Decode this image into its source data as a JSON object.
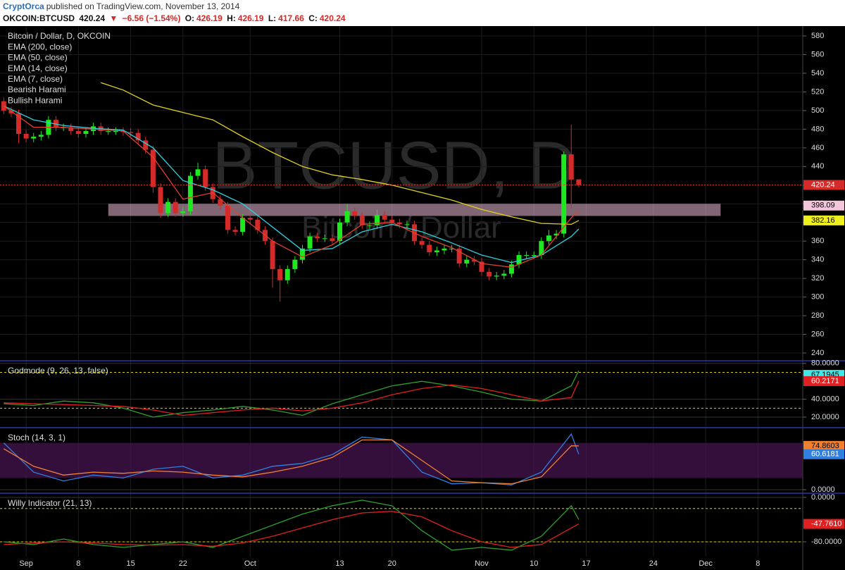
{
  "header": {
    "user": "CryptOrca",
    "published": "published on TradingView.com, November 13, 2014"
  },
  "quote": {
    "symbol": "OKCOIN:BTCUSD",
    "last": "420.24",
    "change": "−6.56 (−1.54%)",
    "ohlc": [
      {
        "label": "O:",
        "value": "426.19"
      },
      {
        "label": "H:",
        "value": "426.19"
      },
      {
        "label": "L:",
        "value": "417.66"
      },
      {
        "label": "C:",
        "value": "420.24"
      }
    ]
  },
  "watermark": {
    "symbol": "BTCUSD, D",
    "description": "Bitcoin / Dollar"
  },
  "chart_data": [
    {
      "type": "candlestick",
      "legend": [
        "Bitcoin / Dollar, D, OKCOIN",
        "EMA (200, close)",
        "EMA (50, close)",
        "EMA (14, close)",
        "EMA (7, close)",
        "Bearish Harami",
        "Bullish Harami"
      ],
      "open": [
        510,
        500,
        497,
        475,
        470,
        472,
        474,
        490,
        482,
        482,
        478,
        475,
        478,
        483,
        478,
        478,
        478,
        477,
        476,
        468,
        458,
        418,
        390,
        402,
        390,
        392,
        430,
        437,
        418,
        405,
        398,
        372,
        370,
        385,
        383,
        372,
        360,
        330,
        318,
        330,
        340,
        352,
        365,
        363,
        363,
        360,
        380,
        392,
        387,
        377,
        377,
        388,
        383,
        380,
        378,
        378,
        360,
        356,
        348,
        350,
        352,
        352,
        336,
        340,
        338,
        327,
        322,
        323,
        325,
        335,
        345,
        345,
        345,
        360,
        366,
        368,
        453,
        426.19
      ],
      "high": [
        514,
        504,
        501,
        479,
        476,
        478,
        494,
        494,
        486,
        486,
        482,
        482,
        487,
        487,
        482,
        482,
        482,
        481,
        480,
        472,
        462,
        422,
        406,
        406,
        396,
        434,
        444,
        441,
        422,
        409,
        402,
        376,
        389,
        389,
        387,
        376,
        364,
        334,
        334,
        344,
        356,
        369,
        369,
        367,
        367,
        384,
        400,
        396,
        391,
        381,
        394,
        392,
        387,
        384,
        382,
        382,
        364,
        360,
        354,
        356,
        356,
        356,
        344,
        344,
        342,
        331,
        327,
        329,
        339,
        349,
        349,
        349,
        364,
        372,
        372,
        456,
        485,
        426.19
      ],
      "low": [
        496,
        493,
        465,
        466,
        466,
        468,
        470,
        478,
        478,
        474,
        471,
        471,
        474,
        474,
        474,
        474,
        473,
        472,
        464,
        454,
        412,
        385,
        386,
        386,
        386,
        388,
        426,
        414,
        401,
        394,
        368,
        366,
        366,
        379,
        368,
        356,
        310,
        295,
        314,
        326,
        336,
        348,
        359,
        359,
        356,
        356,
        376,
        383,
        373,
        373,
        373,
        379,
        376,
        374,
        374,
        356,
        352,
        344,
        344,
        346,
        348,
        332,
        332,
        334,
        323,
        318,
        318,
        319,
        321,
        331,
        341,
        341,
        341,
        356,
        362,
        364,
        395,
        417.66
      ],
      "close": [
        500,
        497,
        475,
        470,
        472,
        474,
        490,
        482,
        482,
        478,
        475,
        478,
        483,
        478,
        478,
        478,
        477,
        476,
        468,
        458,
        418,
        390,
        402,
        390,
        392,
        430,
        437,
        418,
        405,
        398,
        372,
        370,
        385,
        383,
        372,
        360,
        330,
        318,
        330,
        340,
        352,
        365,
        363,
        363,
        360,
        380,
        392,
        387,
        377,
        377,
        388,
        383,
        380,
        378,
        378,
        360,
        356,
        348,
        350,
        352,
        352,
        336,
        340,
        338,
        327,
        322,
        323,
        325,
        335,
        345,
        345,
        345,
        360,
        366,
        368,
        453,
        426,
        420.24
      ],
      "up_color": "#1ee81e",
      "down_color": "#d42a2a",
      "series": [
        {
          "color": "#e0d020",
          "x": [
            13,
            16,
            20,
            24,
            28,
            32,
            36,
            40,
            44,
            48,
            52,
            56,
            60,
            64,
            68,
            72,
            76,
            77
          ],
          "values": [
            530,
            522,
            506,
            498,
            490,
            472,
            455,
            440,
            431,
            426,
            420,
            412,
            404,
            394,
            386,
            379,
            378,
            382.16
          ]
        },
        {
          "color": "#30d0e0",
          "x": [
            0,
            4,
            8,
            12,
            16,
            20,
            24,
            28,
            32,
            36,
            40,
            44,
            48,
            52,
            56,
            60,
            64,
            68,
            72,
            76,
            77
          ],
          "values": [
            505,
            490,
            484,
            481,
            479,
            460,
            425,
            415,
            400,
            375,
            350,
            352,
            370,
            378,
            370,
            358,
            345,
            337,
            345,
            365,
            373
          ]
        },
        {
          "color": "#e04030",
          "x": [
            0,
            4,
            8,
            12,
            16,
            20,
            24,
            28,
            32,
            36,
            40,
            44,
            48,
            52,
            56,
            60,
            64,
            68,
            72,
            76,
            77
          ],
          "values": [
            505,
            482,
            482,
            480,
            478,
            450,
            405,
            412,
            385,
            360,
            343,
            356,
            378,
            380,
            365,
            353,
            336,
            332,
            345,
            385,
            393
          ]
        }
      ],
      "zone": {
        "x": [
          14,
          96
        ],
        "y": [
          387,
          400
        ],
        "color": "rgba(235,185,215,0.55)"
      },
      "price_labels": [
        {
          "value": 420.24,
          "color": "#d42a2a"
        },
        {
          "value": 398.09,
          "color": "#f3c6dc"
        },
        {
          "value": 382.16,
          "color": "#f0f020"
        }
      ],
      "xlim": [
        -0.5,
        107
      ],
      "ylim": [
        231.7,
        590.6
      ],
      "yticks": [
        240,
        260,
        280,
        300,
        320,
        340,
        360,
        380,
        400,
        420,
        440,
        460,
        480,
        500,
        520,
        540,
        560,
        580
      ],
      "xticks": [
        {
          "value": 3,
          "label": "Sep"
        },
        {
          "value": 10,
          "label": "8"
        },
        {
          "value": 17,
          "label": "15"
        },
        {
          "value": 24,
          "label": "22"
        },
        {
          "value": 33,
          "label": "Oct"
        },
        {
          "value": 45,
          "label": "13"
        },
        {
          "value": 52,
          "label": "20"
        },
        {
          "value": 64,
          "label": "Nov"
        },
        {
          "value": 71,
          "label": "10"
        },
        {
          "value": 78,
          "label": "17"
        },
        {
          "value": 87,
          "label": "24"
        },
        {
          "value": 94,
          "label": "Dec"
        },
        {
          "value": 101,
          "label": "8"
        }
      ],
      "grid": true
    },
    {
      "type": "line",
      "title": "Godmode (9, 26, 13, false)",
      "ylim": [
        8.2,
        83
      ],
      "yticks": [
        {
          "value": 20,
          "label": "20.0000"
        },
        {
          "value": 40,
          "label": "40.0000"
        },
        {
          "value": 80,
          "label": "80.0000"
        }
      ],
      "levels": [
        70,
        30
      ],
      "series": [
        {
          "color": "#2ea02e",
          "x": [
            0,
            4,
            8,
            12,
            16,
            20,
            24,
            28,
            32,
            36,
            40,
            44,
            48,
            52,
            56,
            60,
            64,
            68,
            72,
            76,
            77
          ],
          "values": [
            35,
            33,
            38,
            36,
            30,
            20,
            25,
            28,
            32,
            28,
            22,
            35,
            45,
            55,
            60,
            55,
            48,
            40,
            38,
            55,
            72
          ]
        },
        {
          "color": "#e02020",
          "x": [
            0,
            4,
            8,
            12,
            16,
            20,
            24,
            28,
            32,
            36,
            40,
            44,
            48,
            52,
            56,
            60,
            64,
            68,
            72,
            76,
            77
          ],
          "values": [
            36,
            35,
            34,
            33,
            32,
            28,
            22,
            25,
            28,
            30,
            27,
            30,
            36,
            45,
            52,
            56,
            52,
            45,
            38,
            42,
            60.2171
          ]
        }
      ],
      "price_labels": [
        {
          "value": 67.1945,
          "color": "#40e8e8"
        },
        {
          "value": 60.2171,
          "color": "#e02020"
        }
      ]
    },
    {
      "type": "line",
      "title": "Stoch (14, 3, 1)",
      "ylim": [
        -6,
        106
      ],
      "yticks": [
        {
          "value": 0,
          "label": "0.0000"
        }
      ],
      "band": [
        20,
        80
      ],
      "series": [
        {
          "color": "#2f80e0",
          "x": [
            0,
            4,
            8,
            12,
            16,
            20,
            24,
            28,
            32,
            36,
            40,
            44,
            48,
            52,
            56,
            60,
            64,
            68,
            72,
            76,
            77
          ],
          "values": [
            80,
            30,
            15,
            25,
            20,
            35,
            40,
            20,
            25,
            40,
            45,
            60,
            90,
            85,
            30,
            10,
            12,
            8,
            30,
            95,
            60.6181
          ]
        },
        {
          "color": "#f08030",
          "x": [
            0,
            4,
            8,
            12,
            16,
            20,
            24,
            28,
            32,
            36,
            40,
            44,
            48,
            52,
            56,
            60,
            64,
            68,
            72,
            76,
            77
          ],
          "values": [
            70,
            40,
            25,
            30,
            28,
            32,
            30,
            25,
            22,
            30,
            40,
            55,
            85,
            85,
            50,
            15,
            12,
            10,
            22,
            75,
            74.8603
          ]
        }
      ],
      "price_labels": [
        {
          "value": 74.8603,
          "color": "#f08030"
        },
        {
          "value": 60.6181,
          "color": "#2f80e0"
        }
      ]
    },
    {
      "type": "line",
      "title": "Willy Indicator (21, 13)",
      "ylim": [
        -106.7,
        7.6
      ],
      "yticks": [
        {
          "value": 0,
          "label": "0.0000"
        },
        {
          "value": -80,
          "label": "-80.0000"
        }
      ],
      "levels": [
        -20,
        -80
      ],
      "series": [
        {
          "color": "#2ea02e",
          "x": [
            0,
            4,
            8,
            12,
            16,
            20,
            24,
            28,
            32,
            36,
            40,
            44,
            48,
            52,
            56,
            60,
            64,
            68,
            72,
            76,
            77
          ],
          "values": [
            -80,
            -85,
            -75,
            -85,
            -90,
            -85,
            -80,
            -90,
            -70,
            -50,
            -30,
            -15,
            -5,
            -15,
            -60,
            -95,
            -90,
            -95,
            -70,
            -15,
            -40
          ]
        },
        {
          "color": "#e02020",
          "x": [
            0,
            4,
            8,
            12,
            16,
            20,
            24,
            28,
            32,
            36,
            40,
            44,
            48,
            52,
            56,
            60,
            64,
            68,
            72,
            76,
            77
          ],
          "values": [
            -85,
            -82,
            -80,
            -82,
            -85,
            -86,
            -85,
            -88,
            -82,
            -70,
            -55,
            -40,
            -28,
            -25,
            -35,
            -60,
            -80,
            -90,
            -85,
            -55,
            -47.761
          ]
        }
      ],
      "price_labels": [
        {
          "value": {
            "value": -47.761,
            "label": "-47.7610"
          },
          "color": "#e02020"
        }
      ]
    }
  ]
}
